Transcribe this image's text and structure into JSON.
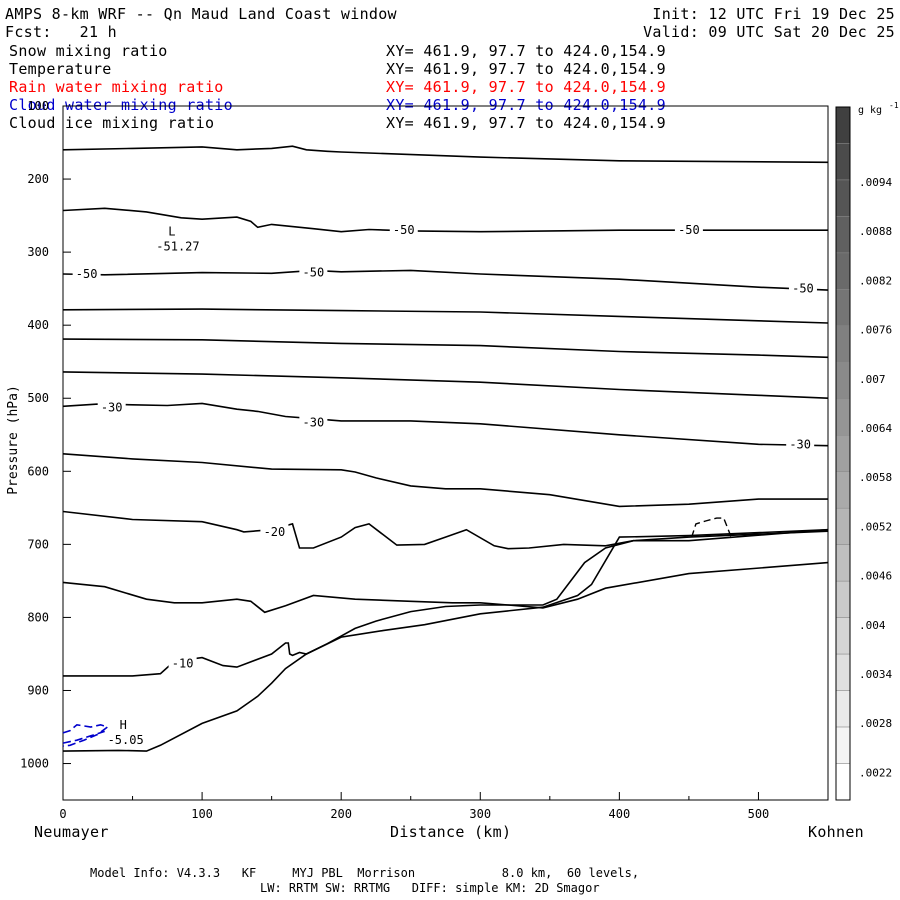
{
  "header": {
    "title": "AMPS 8-km WRF -- Qn Maud Land Coast window",
    "init": "Init: 12 UTC Fri 19 Dec 25",
    "fcst": "Fcst:   21 h",
    "valid": "Valid: 09 UTC Sat 20 Dec 25"
  },
  "fields": [
    {
      "name": "Snow mixing ratio",
      "xy": "XY= 461.9, 97.7 to 424.0,154.9",
      "color": "#000000"
    },
    {
      "name": "Temperature",
      "xy": "XY= 461.9, 97.7 to 424.0,154.9",
      "color": "#000000"
    },
    {
      "name": "Rain water mixing ratio",
      "xy": "XY= 461.9, 97.7 to 424.0,154.9",
      "color": "#ff0000"
    },
    {
      "name": "Cloud water mixing ratio",
      "xy": "XY= 461.9, 97.7 to 424.0,154.9",
      "color": "#0000cc"
    },
    {
      "name": "Cloud ice mixing ratio",
      "xy": "XY= 461.9, 97.7 to 424.0,154.9",
      "color": "#000000"
    }
  ],
  "axes": {
    "ylabel": "Pressure (hPa)",
    "xlabel": "Distance (km)",
    "left_station": "Neumayer",
    "right_station": "Kohnen"
  },
  "colorbar": {
    "unit_label": "g kg",
    "unit_sup": "-1",
    "labels": [
      ".0094",
      ".0088",
      ".0082",
      ".0076",
      ".007",
      ".0064",
      ".0058",
      ".0052",
      ".0046",
      ".004",
      ".0034",
      ".0028",
      ".0022"
    ]
  },
  "footer": {
    "line1": "Model Info: V4.3.3   KF     MYJ PBL  Morrison            8.0 km,  60 levels,",
    "line2": "LW: RRTM SW: RRTMG   DIFF: simple KM: 2D Smagor"
  },
  "chart_data": {
    "type": "contour cross-section",
    "title": "AMPS 8-km WRF -- Qn Maud Land Coast window",
    "xlabel": "Distance (km)",
    "ylabel": "Pressure (hPa)",
    "xlim": [
      0,
      550
    ],
    "ylim": [
      1050,
      100
    ],
    "x_ticks": [
      0,
      100,
      200,
      300,
      400,
      500
    ],
    "y_ticks": [
      100,
      200,
      300,
      400,
      500,
      600,
      700,
      800,
      900,
      1000
    ],
    "temperature_contour_labels": [
      {
        "text": "-50",
        "x": 17,
        "p": 330
      },
      {
        "text": "-50",
        "x": 180,
        "p": 328
      },
      {
        "text": "-50",
        "x": 245,
        "p": 270
      },
      {
        "text": "-50",
        "x": 450,
        "p": 270
      },
      {
        "text": "-50",
        "x": 532,
        "p": 350
      },
      {
        "text": "-30",
        "x": 35,
        "p": 513
      },
      {
        "text": "-30",
        "x": 180,
        "p": 533
      },
      {
        "text": "-30",
        "x": 530,
        "p": 563
      },
      {
        "text": "-20",
        "x": 152,
        "p": 683
      },
      {
        "text": "-10",
        "x": 86,
        "p": 863
      }
    ],
    "extrema": [
      {
        "symbol": "L",
        "value": "-51.27",
        "x": 80,
        "p": 283
      },
      {
        "symbol": "H",
        "value": "-5.05",
        "x": 45,
        "p": 958
      }
    ],
    "contours": [
      {
        "x": [
          0,
          50,
          100,
          125,
          150,
          165,
          175,
          190,
          200,
          300,
          400,
          550
        ],
        "p": [
          160,
          158,
          156,
          160,
          158,
          155,
          160,
          162,
          163,
          170,
          175,
          177
        ]
      },
      {
        "x": [
          0,
          30,
          60,
          85,
          100,
          125,
          135,
          140,
          150,
          180,
          200,
          220,
          250,
          300,
          400,
          450,
          550
        ],
        "p": [
          243,
          240,
          245,
          253,
          255,
          252,
          258,
          266,
          262,
          268,
          272,
          269,
          271,
          272,
          270,
          270,
          270
        ]
      },
      {
        "x": [
          0,
          30,
          100,
          150,
          180,
          200,
          250,
          300,
          400,
          500,
          550
        ],
        "p": [
          330,
          331,
          328,
          329,
          325,
          327,
          325,
          330,
          337,
          348,
          352
        ]
      },
      {
        "x": [
          0,
          100,
          200,
          300,
          400,
          500,
          550
        ],
        "p": [
          379,
          378,
          380,
          382,
          388,
          394,
          397
        ]
      },
      {
        "x": [
          0,
          100,
          200,
          300,
          400,
          500,
          550
        ],
        "p": [
          419,
          420,
          425,
          428,
          436,
          441,
          444
        ]
      },
      {
        "x": [
          0,
          100,
          200,
          300,
          400,
          500,
          550
        ],
        "p": [
          464,
          467,
          472,
          478,
          488,
          496,
          500
        ]
      },
      {
        "x": [
          0,
          25,
          50,
          75,
          100,
          125,
          140,
          160,
          180,
          200,
          250,
          300,
          400,
          500,
          550
        ],
        "p": [
          511,
          508,
          509,
          510,
          507,
          515,
          518,
          525,
          528,
          531,
          531,
          535,
          550,
          563,
          565
        ]
      },
      {
        "x": [
          0,
          50,
          100,
          150,
          200,
          210,
          225,
          250,
          275,
          300,
          350,
          400,
          450,
          500,
          550
        ],
        "p": [
          576,
          583,
          588,
          597,
          598,
          601,
          609,
          620,
          624,
          624,
          632,
          648,
          645,
          638,
          638
        ]
      },
      {
        "x": [
          0,
          50,
          100,
          125,
          130,
          150,
          165,
          170,
          180,
          200,
          210,
          220,
          240,
          260,
          275,
          290,
          310,
          320,
          335,
          360,
          390,
          410,
          450,
          550
        ],
        "p": [
          655,
          666,
          669,
          680,
          683,
          680,
          672,
          705,
          705,
          690,
          677,
          672,
          701,
          700,
          690,
          680,
          702,
          706,
          705,
          700,
          702,
          695,
          690,
          682
        ]
      },
      {
        "x": [
          0,
          30,
          60,
          80,
          100,
          125,
          135,
          145,
          160,
          180,
          210,
          250,
          280,
          300,
          320,
          345,
          370,
          390,
          450,
          550
        ],
        "p": [
          752,
          758,
          775,
          780,
          780,
          775,
          778,
          793,
          784,
          770,
          775,
          778,
          780,
          780,
          783,
          787,
          775,
          760,
          740,
          725
        ]
      },
      {
        "x": [
          0,
          50,
          70,
          80,
          100,
          115,
          125,
          150,
          160,
          162,
          163,
          165,
          170,
          175,
          200,
          230,
          260,
          300,
          345,
          370,
          380,
          400,
          450,
          550
        ],
        "p": [
          880,
          880,
          877,
          860,
          855,
          866,
          868,
          850,
          835,
          835,
          850,
          852,
          848,
          850,
          827,
          818,
          810,
          795,
          786,
          770,
          755,
          690,
          688,
          680
        ]
      },
      {
        "x": [
          0,
          40,
          60,
          70,
          100,
          125,
          140,
          150,
          160,
          175,
          190,
          210,
          225,
          250,
          275,
          300,
          320,
          345,
          355,
          375,
          390,
          410,
          450,
          550
        ],
        "p": [
          983,
          982,
          983,
          975,
          945,
          928,
          908,
          890,
          870,
          850,
          836,
          815,
          805,
          792,
          785,
          783,
          783,
          783,
          775,
          725,
          705,
          695,
          695,
          680
        ]
      }
    ],
    "snow_mixing_ratio_dashed": [
      {
        "x": [
          452,
          455,
          462,
          470,
          475,
          480,
          478
        ],
        "p": [
          690,
          672,
          668,
          664,
          664,
          688,
          690
        ]
      }
    ],
    "cloud_water_contours_blue": [
      {
        "x": [
          0,
          5,
          10,
          20,
          27,
          32,
          25,
          15,
          5,
          0
        ],
        "p": [
          958,
          955,
          947,
          950,
          947,
          950,
          960,
          968,
          975,
          976
        ]
      },
      {
        "x": [
          0,
          10,
          20,
          30
        ],
        "p": [
          972,
          968,
          962,
          956
        ]
      }
    ]
  }
}
